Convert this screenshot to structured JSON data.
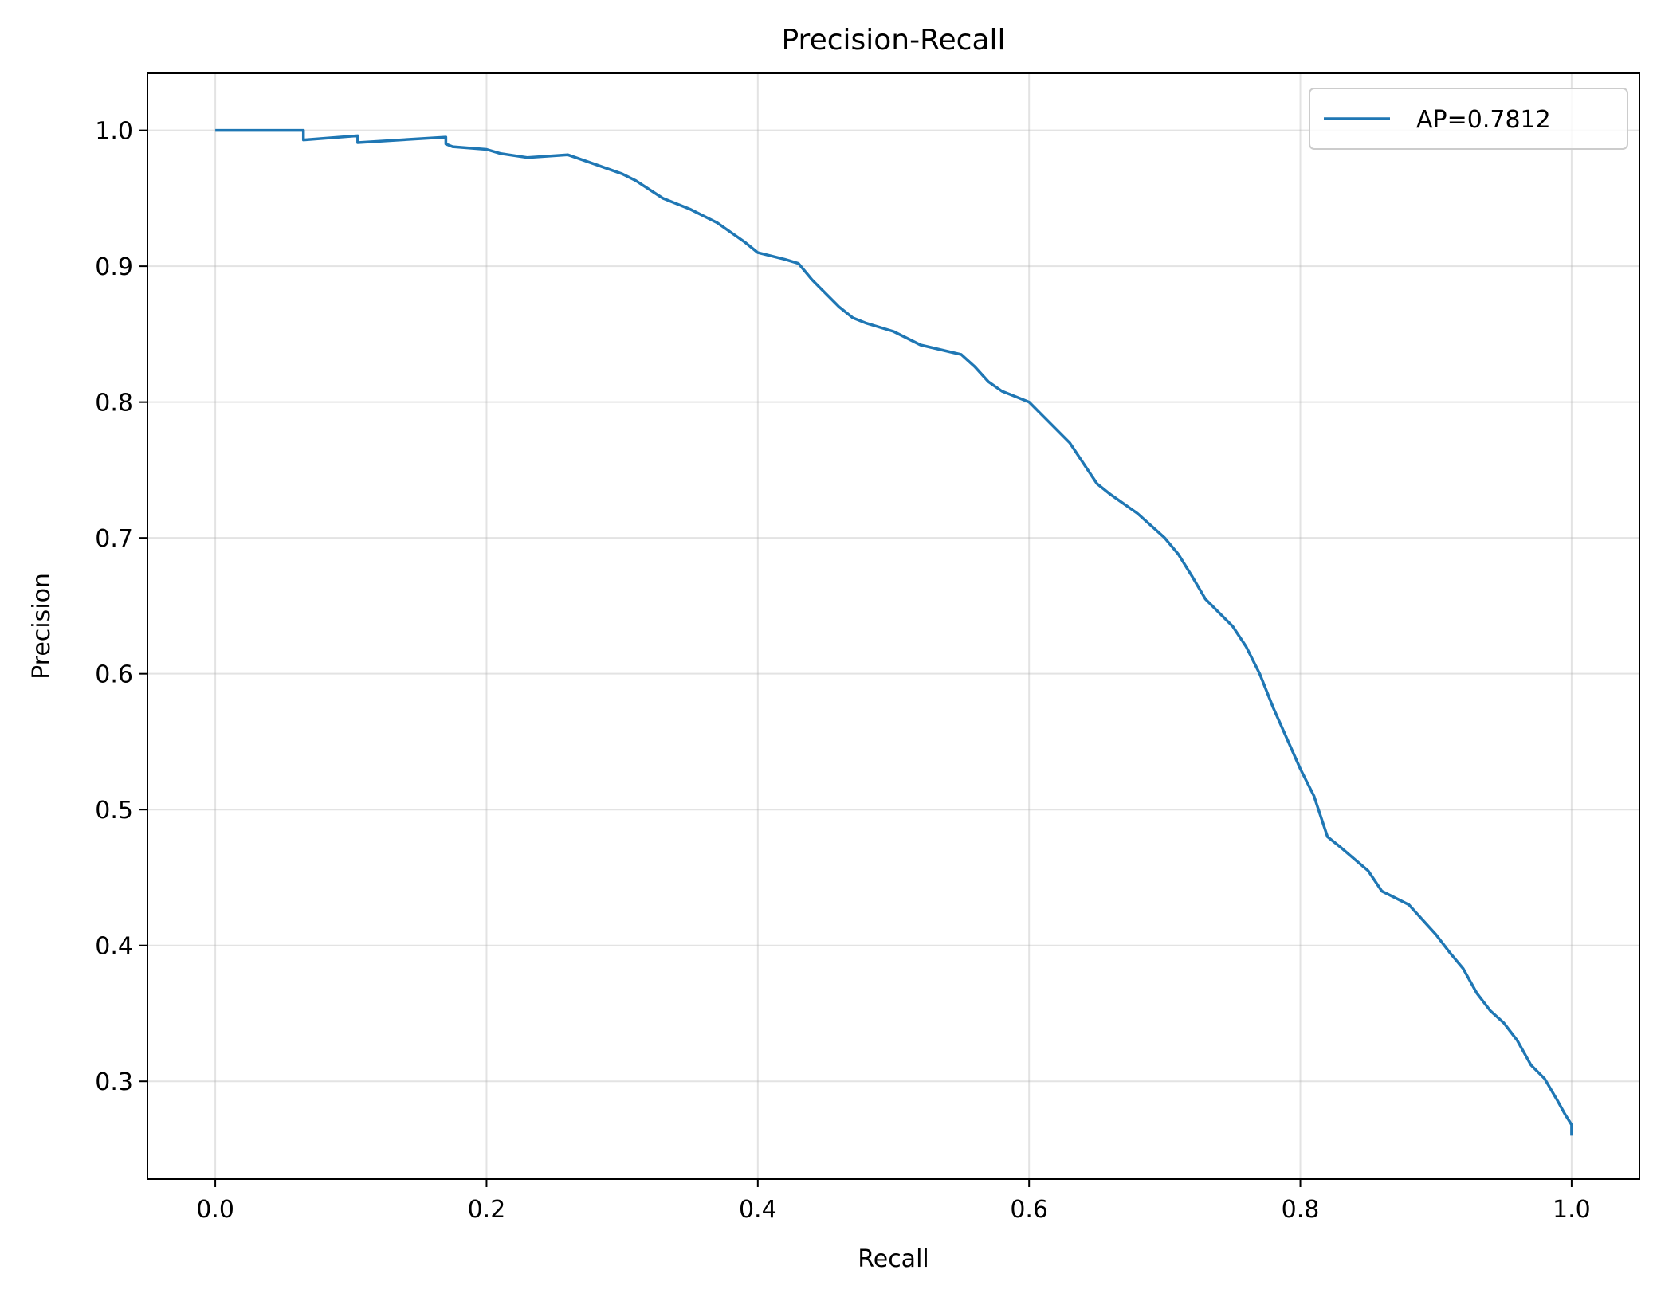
{
  "chart_data": {
    "type": "line",
    "title": "Precision-Recall",
    "xlabel": "Recall",
    "ylabel": "Precision",
    "xlim": [
      -0.05,
      1.05
    ],
    "ylim": [
      0.228,
      1.042
    ],
    "grid": true,
    "legend_position": "top-right",
    "x_ticks": [
      0.0,
      0.2,
      0.4,
      0.6,
      0.8,
      1.0
    ],
    "x_tick_labels": [
      "0.0",
      "0.2",
      "0.4",
      "0.6",
      "0.8",
      "1.0"
    ],
    "y_ticks": [
      0.3,
      0.4,
      0.5,
      0.6,
      0.7,
      0.8,
      0.9,
      1.0
    ],
    "y_tick_labels": [
      "0.3",
      "0.4",
      "0.5",
      "0.6",
      "0.7",
      "0.8",
      "0.9",
      "1.0"
    ],
    "series": [
      {
        "name": "AP=0.7812",
        "color": "#1f77b4",
        "x": [
          0.0,
          0.065,
          0.065,
          0.105,
          0.105,
          0.17,
          0.17,
          0.175,
          0.2,
          0.21,
          0.23,
          0.26,
          0.28,
          0.3,
          0.31,
          0.33,
          0.35,
          0.37,
          0.38,
          0.39,
          0.4,
          0.42,
          0.43,
          0.44,
          0.46,
          0.47,
          0.48,
          0.5,
          0.52,
          0.55,
          0.56,
          0.57,
          0.58,
          0.6,
          0.61,
          0.63,
          0.65,
          0.66,
          0.68,
          0.7,
          0.71,
          0.72,
          0.73,
          0.75,
          0.76,
          0.77,
          0.78,
          0.8,
          0.81,
          0.82,
          0.83,
          0.85,
          0.86,
          0.88,
          0.9,
          0.91,
          0.92,
          0.93,
          0.94,
          0.95,
          0.96,
          0.97,
          0.98,
          0.99,
          0.995,
          1.0,
          1.0
        ],
        "y": [
          1.0,
          1.0,
          0.993,
          0.996,
          0.991,
          0.995,
          0.99,
          0.988,
          0.986,
          0.983,
          0.98,
          0.982,
          0.975,
          0.968,
          0.963,
          0.95,
          0.942,
          0.932,
          0.925,
          0.918,
          0.91,
          0.905,
          0.902,
          0.89,
          0.87,
          0.862,
          0.858,
          0.852,
          0.842,
          0.835,
          0.826,
          0.815,
          0.808,
          0.8,
          0.79,
          0.77,
          0.74,
          0.732,
          0.718,
          0.7,
          0.688,
          0.672,
          0.655,
          0.635,
          0.62,
          0.6,
          0.575,
          0.53,
          0.51,
          0.48,
          0.472,
          0.455,
          0.44,
          0.43,
          0.408,
          0.395,
          0.383,
          0.365,
          0.352,
          0.343,
          0.33,
          0.312,
          0.302,
          0.285,
          0.276,
          0.268,
          0.26
        ]
      }
    ]
  }
}
